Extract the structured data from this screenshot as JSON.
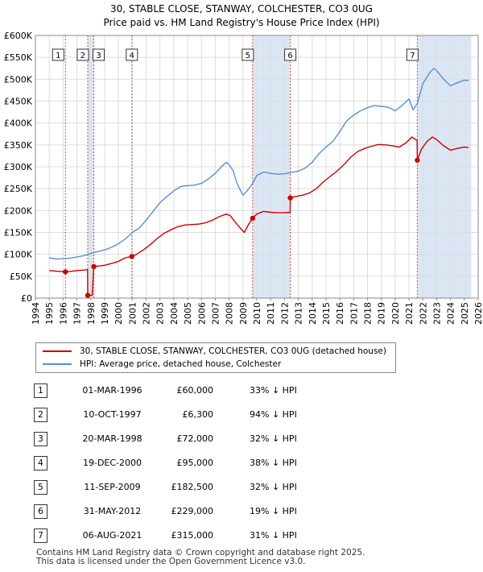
{
  "title_line1": "30, STABLE CLOSE, STANWAY, COLCHESTER, CO3 0UG",
  "title_line2": "Price paid vs. HM Land Registry's House Price Index (HPI)",
  "legend": {
    "property_label": "30, STABLE CLOSE, STANWAY, COLCHESTER, CO3 0UG (detached house)",
    "hpi_label": "HPI: Average price, detached house, Colchester"
  },
  "colors": {
    "property": "#cc0000",
    "hpi": "#5a8fd0",
    "shade": "#dbe6f5",
    "vline": "#dd4444",
    "grid": "#dddddd"
  },
  "sales": [
    {
      "n": "1",
      "date": "01-MAR-1996",
      "price": "£60,000",
      "pct": "33% ↓ HPI"
    },
    {
      "n": "2",
      "date": "10-OCT-1997",
      "price": "£6,300",
      "pct": "94% ↓ HPI"
    },
    {
      "n": "3",
      "date": "20-MAR-1998",
      "price": "£72,000",
      "pct": "32% ↓ HPI"
    },
    {
      "n": "4",
      "date": "19-DEC-2000",
      "price": "£95,000",
      "pct": "38% ↓ HPI"
    },
    {
      "n": "5",
      "date": "11-SEP-2009",
      "price": "£182,500",
      "pct": "32% ↓ HPI"
    },
    {
      "n": "6",
      "date": "31-MAY-2012",
      "price": "£229,000",
      "pct": "19% ↓ HPI"
    },
    {
      "n": "7",
      "date": "06-AUG-2021",
      "price": "£315,000",
      "pct": "31% ↓ HPI"
    }
  ],
  "footer_line1": "Contains HM Land Registry data © Crown copyright and database right 2025.",
  "footer_line2": "This data is licensed under the Open Government Licence v3.0.",
  "chart_data": {
    "type": "line",
    "xlim": [
      1994,
      2026
    ],
    "ylim": [
      0,
      600000
    ],
    "x_ticks": [
      "1994",
      "1995",
      "1996",
      "1997",
      "1998",
      "1999",
      "2000",
      "2001",
      "2002",
      "2003",
      "2004",
      "2005",
      "2006",
      "2007",
      "2008",
      "2009",
      "2010",
      "2011",
      "2012",
      "2013",
      "2014",
      "2015",
      "2016",
      "2017",
      "2018",
      "2019",
      "2020",
      "2021",
      "2022",
      "2023",
      "2024",
      "2025",
      "2026"
    ],
    "y_ticks": [
      {
        "v": 0,
        "label": "£0"
      },
      {
        "v": 50000,
        "label": "£50K"
      },
      {
        "v": 100000,
        "label": "£100K"
      },
      {
        "v": 150000,
        "label": "£150K"
      },
      {
        "v": 200000,
        "label": "£200K"
      },
      {
        "v": 250000,
        "label": "£250K"
      },
      {
        "v": 300000,
        "label": "£300K"
      },
      {
        "v": 350000,
        "label": "£350K"
      },
      {
        "v": 400000,
        "label": "£400K"
      },
      {
        "v": 450000,
        "label": "£450K"
      },
      {
        "v": 500000,
        "label": "£500K"
      },
      {
        "v": 550000,
        "label": "£550K"
      },
      {
        "v": 600000,
        "label": "£600K"
      }
    ],
    "shaded_spans": [
      [
        1997.78,
        1998.22
      ],
      [
        2009.7,
        2012.42
      ],
      [
        2021.6,
        2025.5
      ]
    ],
    "sale_markers": [
      {
        "n": "1",
        "x": 1996.17,
        "y": 60000
      },
      {
        "n": "2",
        "x": 1997.78,
        "y": 6300
      },
      {
        "n": "3",
        "x": 1998.22,
        "y": 72000
      },
      {
        "n": "4",
        "x": 2000.97,
        "y": 95000
      },
      {
        "n": "5",
        "x": 2009.7,
        "y": 182500
      },
      {
        "n": "6",
        "x": 2012.42,
        "y": 229000
      },
      {
        "n": "7",
        "x": 2021.6,
        "y": 315000
      }
    ],
    "series": [
      {
        "name": "HPI: Average price, detached house, Colchester",
        "points": [
          [
            1995,
            92000
          ],
          [
            1995.5,
            89000
          ],
          [
            1996,
            90000
          ],
          [
            1996.5,
            91000
          ],
          [
            1997,
            94000
          ],
          [
            1997.5,
            97000
          ],
          [
            1998,
            102000
          ],
          [
            1998.5,
            106000
          ],
          [
            1999,
            110000
          ],
          [
            1999.5,
            116000
          ],
          [
            2000,
            124000
          ],
          [
            2000.5,
            135000
          ],
          [
            2001,
            150000
          ],
          [
            2001.5,
            160000
          ],
          [
            2002,
            178000
          ],
          [
            2002.5,
            198000
          ],
          [
            2003,
            218000
          ],
          [
            2003.5,
            232000
          ],
          [
            2004,
            245000
          ],
          [
            2004.5,
            255000
          ],
          [
            2005,
            257000
          ],
          [
            2005.5,
            258000
          ],
          [
            2006,
            262000
          ],
          [
            2006.5,
            272000
          ],
          [
            2007,
            285000
          ],
          [
            2007.5,
            302000
          ],
          [
            2007.8,
            310000
          ],
          [
            2008,
            305000
          ],
          [
            2008.3,
            290000
          ],
          [
            2008.6,
            260000
          ],
          [
            2009,
            235000
          ],
          [
            2009.3,
            245000
          ],
          [
            2009.7,
            262000
          ],
          [
            2010,
            280000
          ],
          [
            2010.5,
            288000
          ],
          [
            2011,
            285000
          ],
          [
            2011.5,
            283000
          ],
          [
            2012,
            284000
          ],
          [
            2012.5,
            287000
          ],
          [
            2013,
            290000
          ],
          [
            2013.5,
            297000
          ],
          [
            2014,
            310000
          ],
          [
            2014.5,
            330000
          ],
          [
            2015,
            345000
          ],
          [
            2015.5,
            358000
          ],
          [
            2016,
            380000
          ],
          [
            2016.5,
            405000
          ],
          [
            2017,
            418000
          ],
          [
            2017.5,
            428000
          ],
          [
            2018,
            435000
          ],
          [
            2018.5,
            440000
          ],
          [
            2019,
            438000
          ],
          [
            2019.5,
            436000
          ],
          [
            2020,
            428000
          ],
          [
            2020.5,
            440000
          ],
          [
            2021,
            455000
          ],
          [
            2021.3,
            430000
          ],
          [
            2021.6,
            445000
          ],
          [
            2022,
            490000
          ],
          [
            2022.5,
            515000
          ],
          [
            2022.8,
            525000
          ],
          [
            2023,
            520000
          ],
          [
            2023.5,
            500000
          ],
          [
            2024,
            485000
          ],
          [
            2024.5,
            492000
          ],
          [
            2025,
            498000
          ],
          [
            2025.3,
            497000
          ]
        ]
      },
      {
        "name": "30, STABLE CLOSE, STANWAY, COLCHESTER, CO3 0UG (detached house)",
        "points": [
          [
            1995,
            63000
          ],
          [
            1995.5,
            61500
          ],
          [
            1996.17,
            60000
          ],
          [
            1996.5,
            61000
          ],
          [
            1997,
            63000
          ],
          [
            1997.5,
            64000
          ],
          [
            1997.77,
            65000
          ],
          [
            1997.78,
            6300
          ],
          [
            1998.1,
            6500
          ],
          [
            1998.22,
            72000
          ],
          [
            1998.5,
            73000
          ],
          [
            1999,
            75000
          ],
          [
            1999.5,
            79000
          ],
          [
            2000,
            84000
          ],
          [
            2000.5,
            92000
          ],
          [
            2000.97,
            95000
          ],
          [
            2001.3,
            100000
          ],
          [
            2001.8,
            110000
          ],
          [
            2002.3,
            122000
          ],
          [
            2002.8,
            136000
          ],
          [
            2003.3,
            148000
          ],
          [
            2003.8,
            156000
          ],
          [
            2004.3,
            163000
          ],
          [
            2004.8,
            167000
          ],
          [
            2005.3,
            168000
          ],
          [
            2005.8,
            169000
          ],
          [
            2006.3,
            172000
          ],
          [
            2006.8,
            178000
          ],
          [
            2007.3,
            186000
          ],
          [
            2007.8,
            192000
          ],
          [
            2008.1,
            188000
          ],
          [
            2008.4,
            175000
          ],
          [
            2008.8,
            160000
          ],
          [
            2009.1,
            150000
          ],
          [
            2009.4,
            168000
          ],
          [
            2009.7,
            182500
          ],
          [
            2010,
            192000
          ],
          [
            2010.5,
            198000
          ],
          [
            2011,
            196000
          ],
          [
            2011.5,
            195000
          ],
          [
            2012,
            195000
          ],
          [
            2012.41,
            196000
          ],
          [
            2012.42,
            229000
          ],
          [
            2012.8,
            232000
          ],
          [
            2013.3,
            235000
          ],
          [
            2013.8,
            240000
          ],
          [
            2014.3,
            250000
          ],
          [
            2014.8,
            265000
          ],
          [
            2015.3,
            278000
          ],
          [
            2015.8,
            290000
          ],
          [
            2016.3,
            305000
          ],
          [
            2016.8,
            322000
          ],
          [
            2017.3,
            335000
          ],
          [
            2017.8,
            342000
          ],
          [
            2018.3,
            347000
          ],
          [
            2018.8,
            351000
          ],
          [
            2019.3,
            350000
          ],
          [
            2019.8,
            348000
          ],
          [
            2020.3,
            345000
          ],
          [
            2020.8,
            355000
          ],
          [
            2021.2,
            368000
          ],
          [
            2021.59,
            360000
          ],
          [
            2021.6,
            315000
          ],
          [
            2021.9,
            340000
          ],
          [
            2022.3,
            358000
          ],
          [
            2022.7,
            368000
          ],
          [
            2023,
            362000
          ],
          [
            2023.5,
            348000
          ],
          [
            2024,
            338000
          ],
          [
            2024.5,
            342000
          ],
          [
            2025,
            345000
          ],
          [
            2025.3,
            344000
          ]
        ]
      }
    ]
  }
}
